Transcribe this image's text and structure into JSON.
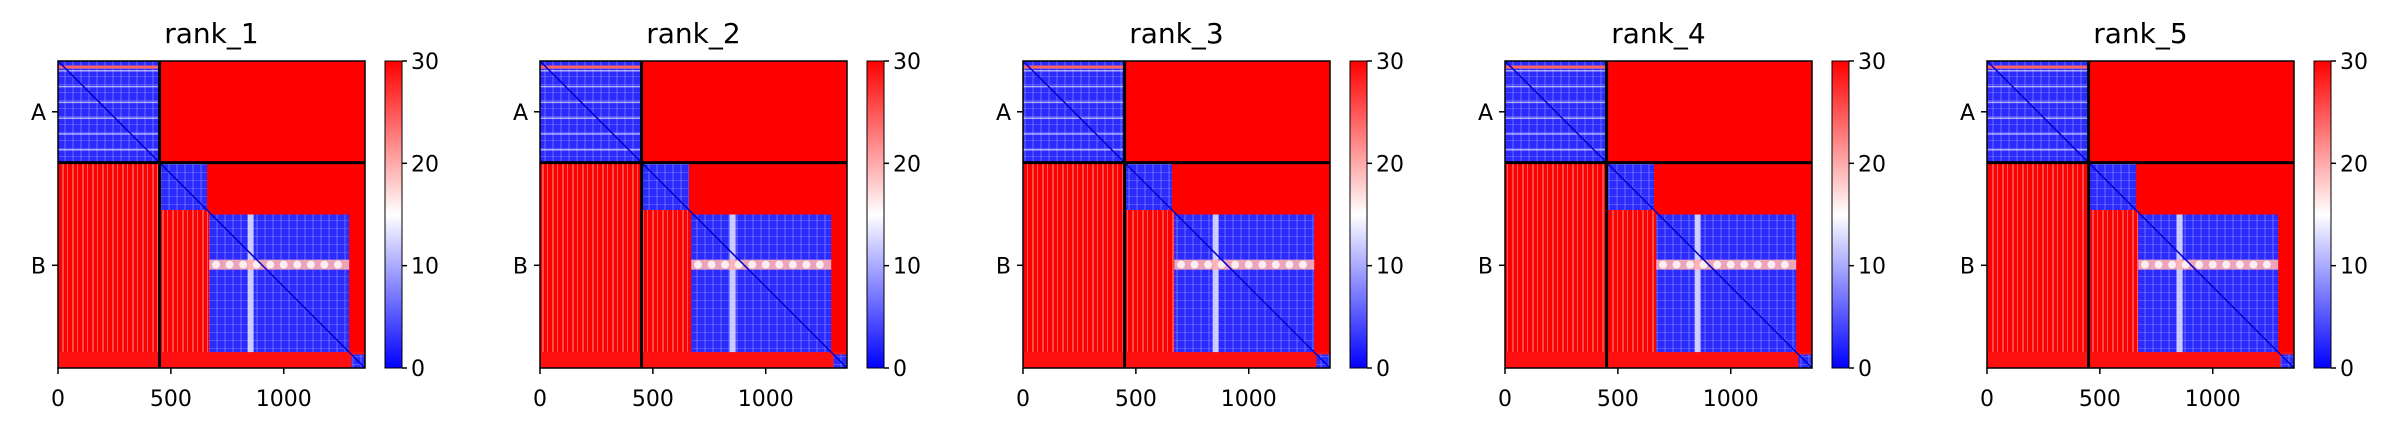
{
  "chart_data": {
    "type": "heatmap",
    "x_ticks": [
      0,
      500,
      1000
    ],
    "x_tick_labels": [
      "0",
      "500",
      "1000"
    ],
    "x_range": [
      0,
      1360
    ],
    "y_range": [
      0,
      1360
    ],
    "chain_boundary": 450,
    "chains": [
      {
        "label": "A",
        "start": 0,
        "end": 450
      },
      {
        "label": "B",
        "start": 450,
        "end": 1360
      }
    ],
    "colorbar": {
      "range": [
        0,
        30
      ],
      "ticks": [
        0,
        10,
        20,
        30
      ],
      "tick_labels": [
        "0",
        "10",
        "20",
        "30"
      ],
      "colors": {
        "low": "#0000ff",
        "mid": "#ffffff",
        "high": "#ff0000"
      }
    },
    "low_error_blocks": [
      {
        "x": [
          0,
          450
        ],
        "y": [
          0,
          450
        ]
      },
      {
        "x": [
          450,
          660
        ],
        "y": [
          450,
          660
        ]
      },
      {
        "x": [
          670,
          1290
        ],
        "y": [
          680,
          1290
        ]
      },
      {
        "x": [
          1300,
          1360
        ],
        "y": [
          1300,
          1360
        ]
      }
    ],
    "panels": [
      {
        "title": "rank_1"
      },
      {
        "title": "rank_2"
      },
      {
        "title": "rank_3"
      },
      {
        "title": "rank_4"
      },
      {
        "title": "rank_5"
      }
    ]
  }
}
